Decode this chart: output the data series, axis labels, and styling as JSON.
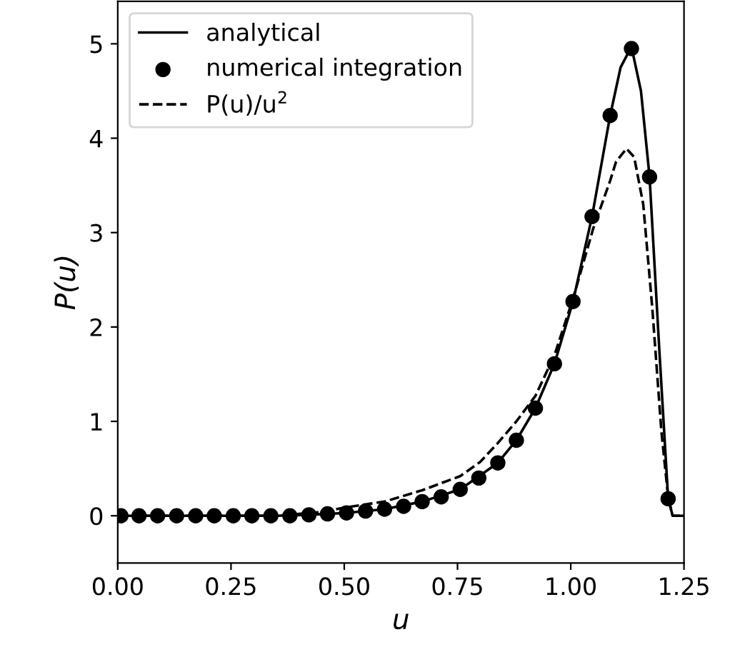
{
  "chart_data": {
    "type": "line",
    "xlabel": "u",
    "ylabel": "P(u)",
    "xlim": [
      0,
      1.25
    ],
    "ylim": [
      -0.5,
      5.45
    ],
    "xticks": [
      {
        "value": 0,
        "label": "0.00"
      },
      {
        "value": 0.25,
        "label": "0.25"
      },
      {
        "value": 0.5,
        "label": "0.50"
      },
      {
        "value": 0.75,
        "label": "0.75"
      },
      {
        "value": 1.0,
        "label": "1.00"
      },
      {
        "value": 1.25,
        "label": "1.25"
      }
    ],
    "yticks": [
      0,
      1,
      2,
      3,
      4,
      5
    ],
    "grid": false,
    "legend": "top left",
    "series": [
      {
        "name": "analytical",
        "type": "line",
        "color": "#000000",
        "line_style": "solid",
        "x": [
          0,
          0.35,
          0.422,
          0.505,
          0.589,
          0.672,
          0.756,
          0.839,
          0.88,
          0.922,
          0.964,
          1.005,
          1.047,
          1.087,
          1.11,
          1.134,
          1.155,
          1.174,
          1.195,
          1.215,
          1.225,
          1.25
        ],
        "values": [
          0,
          0,
          0.01,
          0.03,
          0.07,
          0.15,
          0.28,
          0.56,
          0.8,
          1.14,
          1.61,
          2.27,
          3.17,
          4.24,
          4.75,
          4.97,
          4.5,
          3.59,
          1.8,
          0.18,
          0,
          0
        ]
      },
      {
        "name": "numerical integration",
        "type": "scatter",
        "color": "#000000",
        "marker": "circle",
        "x": [
          0.007,
          0.047,
          0.088,
          0.13,
          0.172,
          0.213,
          0.255,
          0.296,
          0.338,
          0.38,
          0.422,
          0.463,
          0.505,
          0.547,
          0.589,
          0.631,
          0.672,
          0.714,
          0.756,
          0.797,
          0.839,
          0.88,
          0.922,
          0.964,
          1.005,
          1.047,
          1.087,
          1.134,
          1.174,
          1.215
        ],
        "values": [
          0,
          0,
          0,
          0,
          0,
          0,
          0,
          0,
          0,
          0,
          0.01,
          0.02,
          0.03,
          0.05,
          0.07,
          0.1,
          0.15,
          0.2,
          0.28,
          0.4,
          0.56,
          0.8,
          1.14,
          1.61,
          2.27,
          3.17,
          4.24,
          4.95,
          3.59,
          0.18
        ]
      },
      {
        "name": "P(u)/u$^{2}$",
        "type": "line",
        "color": "#000000",
        "line_style": "dashed",
        "x": [
          0,
          0.35,
          0.45,
          0.505,
          0.589,
          0.672,
          0.756,
          0.8,
          0.839,
          0.88,
          0.922,
          0.964,
          1.005,
          1.05,
          1.087,
          1.1,
          1.123,
          1.14,
          1.16,
          1.18,
          1.2,
          1.215,
          1.225,
          1.25
        ],
        "values": [
          0,
          0,
          0.04,
          0.09,
          0.15,
          0.27,
          0.42,
          0.57,
          0.77,
          1.0,
          1.27,
          1.7,
          2.3,
          3.05,
          3.55,
          3.75,
          3.89,
          3.8,
          3.3,
          2.2,
          0.9,
          0.2,
          0,
          0
        ]
      }
    ]
  }
}
